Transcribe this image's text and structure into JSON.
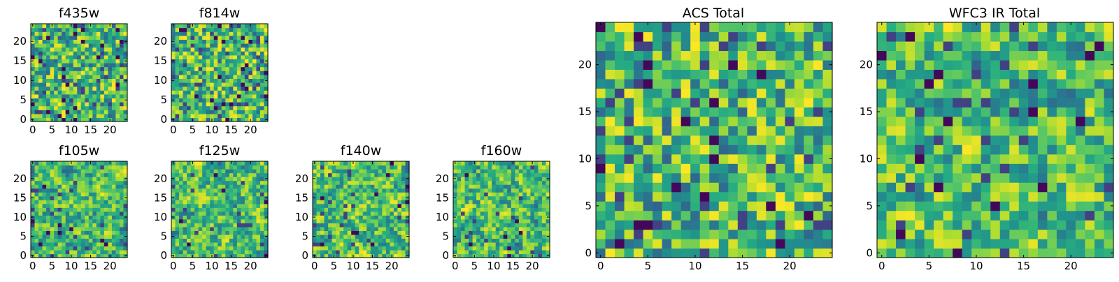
{
  "chart_data": [
    {
      "type": "heatmap",
      "title": "f435w",
      "xticks": [
        "0",
        "5",
        "10",
        "15",
        "20"
      ],
      "yticks": [
        "0",
        "5",
        "10",
        "15",
        "20"
      ],
      "xlim": [
        -0.5,
        24.5
      ],
      "ylim": [
        -0.5,
        24.5
      ],
      "grid": false,
      "colormap": "viridis",
      "shape": [
        25,
        25
      ],
      "seed": 11,
      "smooth": 0,
      "dark_fraction": 0.03
    },
    {
      "type": "heatmap",
      "title": "f814w",
      "xticks": [
        "0",
        "5",
        "10",
        "15",
        "20"
      ],
      "yticks": [
        "0",
        "5",
        "10",
        "15",
        "20"
      ],
      "xlim": [
        -0.5,
        24.5
      ],
      "ylim": [
        -0.5,
        24.5
      ],
      "grid": false,
      "colormap": "viridis",
      "shape": [
        25,
        25
      ],
      "seed": 23,
      "smooth": 0,
      "dark_fraction": 0.035
    },
    {
      "type": "heatmap",
      "title": "f105w",
      "xticks": [
        "0",
        "5",
        "10",
        "15",
        "20"
      ],
      "yticks": [
        "0",
        "5",
        "10",
        "15",
        "20"
      ],
      "xlim": [
        -0.5,
        24.5
      ],
      "ylim": [
        -0.5,
        24.5
      ],
      "grid": false,
      "colormap": "viridis",
      "shape": [
        25,
        25
      ],
      "seed": 37,
      "smooth": 1,
      "dark_fraction": 0.02
    },
    {
      "type": "heatmap",
      "title": "f125w",
      "xticks": [
        "0",
        "5",
        "10",
        "15",
        "20"
      ],
      "yticks": [
        "0",
        "5",
        "10",
        "15",
        "20"
      ],
      "xlim": [
        -0.5,
        24.5
      ],
      "ylim": [
        -0.5,
        24.5
      ],
      "grid": false,
      "colormap": "viridis",
      "shape": [
        25,
        25
      ],
      "seed": 41,
      "smooth": 1,
      "dark_fraction": 0.02
    },
    {
      "type": "heatmap",
      "title": "f140w",
      "xticks": [
        "0",
        "5",
        "10",
        "15",
        "20"
      ],
      "yticks": [
        "0",
        "5",
        "10",
        "15",
        "20"
      ],
      "xlim": [
        -0.5,
        24.5
      ],
      "ylim": [
        -0.5,
        24.5
      ],
      "grid": false,
      "colormap": "viridis",
      "shape": [
        25,
        25
      ],
      "seed": 53,
      "smooth": 1,
      "dark_fraction": 0.02
    },
    {
      "type": "heatmap",
      "title": "f160w",
      "xticks": [
        "0",
        "5",
        "10",
        "15",
        "20"
      ],
      "yticks": [
        "0",
        "5",
        "10",
        "15",
        "20"
      ],
      "xlim": [
        -0.5,
        24.5
      ],
      "ylim": [
        -0.5,
        24.5
      ],
      "grid": false,
      "colormap": "viridis",
      "shape": [
        25,
        25
      ],
      "seed": 67,
      "smooth": 1,
      "dark_fraction": 0.02
    },
    {
      "type": "heatmap",
      "title": "ACS Total",
      "xticks": [
        "0",
        "5",
        "10",
        "15",
        "20"
      ],
      "yticks": [
        "0",
        "5",
        "10",
        "15",
        "20"
      ],
      "xlim": [
        -0.5,
        24.5
      ],
      "ylim": [
        -0.5,
        24.5
      ],
      "grid": false,
      "colormap": "viridis",
      "shape": [
        25,
        25
      ],
      "seed": 79,
      "smooth": 0,
      "dark_fraction": 0.03
    },
    {
      "type": "heatmap",
      "title": "WFC3 IR Total",
      "xticks": [
        "0",
        "5",
        "10",
        "15",
        "20"
      ],
      "yticks": [
        "0",
        "5",
        "10",
        "15",
        "20"
      ],
      "xlim": [
        -0.5,
        24.5
      ],
      "ylim": [
        -0.5,
        24.5
      ],
      "grid": false,
      "colormap": "viridis",
      "shape": [
        25,
        25
      ],
      "seed": 97,
      "smooth": 1,
      "dark_fraction": 0.02
    }
  ]
}
